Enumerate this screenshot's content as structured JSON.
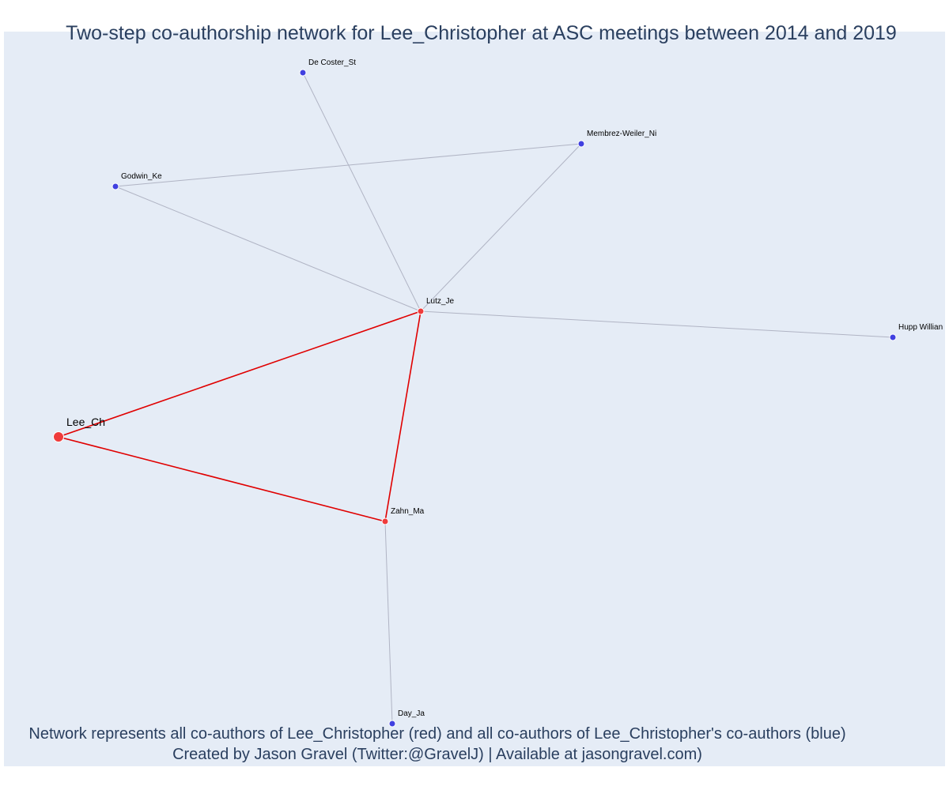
{
  "title": "Two-step co-authorship network for Lee_Christopher at ASC meetings between 2014 and 2019",
  "captions": {
    "line1": "Network represents all co-authors of Lee_Christopher (red) and all co-authors of Lee_Christopher's co-authors (blue)",
    "line2": "Created by Jason Gravel (Twitter:@GravelJ) | Available at jasongravel.com)"
  },
  "colors": {
    "focal": "#ef3b3b",
    "coauthor": "#ef3b3b",
    "second_step": "#4040e0",
    "red_edge": "#e00000",
    "gray_edge": "#b0b4c4",
    "plot_bg": "#e5ecf6",
    "text": "#2a3f5f"
  },
  "nodes": [
    {
      "id": "lee",
      "label": "Lee_Ch",
      "group": "focal"
    },
    {
      "id": "lutz",
      "label": "Lutz_Je",
      "group": "coauthor"
    },
    {
      "id": "zahn",
      "label": "Zahn_Ma",
      "group": "coauthor"
    },
    {
      "id": "decoster",
      "label": "De Coster_St",
      "group": "second_step"
    },
    {
      "id": "membrez",
      "label": "Membrez-Weiler_Ni",
      "group": "second_step"
    },
    {
      "id": "godwin",
      "label": "Godwin_Ke",
      "group": "second_step"
    },
    {
      "id": "hupp",
      "label": "Hupp Willian",
      "group": "second_step"
    },
    {
      "id": "day",
      "label": "Day_Ja",
      "group": "second_step"
    }
  ],
  "edges": [
    {
      "source": "lee",
      "target": "lutz",
      "type": "red"
    },
    {
      "source": "lee",
      "target": "zahn",
      "type": "red"
    },
    {
      "source": "lutz",
      "target": "zahn",
      "type": "red"
    },
    {
      "source": "lutz",
      "target": "decoster",
      "type": "gray"
    },
    {
      "source": "lutz",
      "target": "membrez",
      "type": "gray"
    },
    {
      "source": "lutz",
      "target": "godwin",
      "type": "gray"
    },
    {
      "source": "lutz",
      "target": "hupp",
      "type": "gray"
    },
    {
      "source": "godwin",
      "target": "membrez",
      "type": "gray"
    },
    {
      "source": "zahn",
      "target": "day",
      "type": "gray"
    }
  ]
}
